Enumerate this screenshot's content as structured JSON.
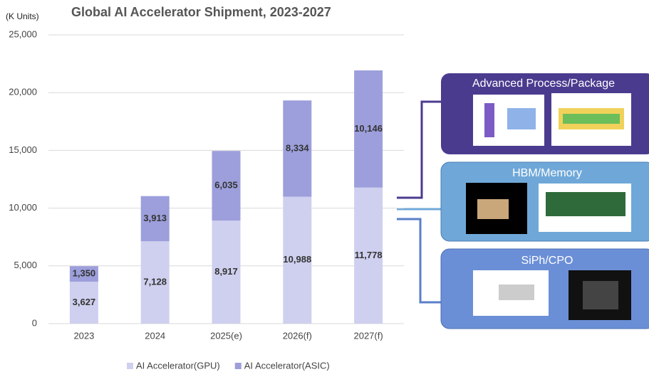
{
  "chart_data": {
    "type": "stacked_bar",
    "title": "Global AI Accelerator Shipment, 2023-2027",
    "y_label": "(K Units)",
    "categories": [
      "2023",
      "2024",
      "2025(e)",
      "2026(f)",
      "2027(f)"
    ],
    "series": [
      {
        "name": "AI Accelerator(GPU)",
        "color": "#cfd0ef",
        "values": [
          3627,
          7128,
          8917,
          10988,
          11778
        ],
        "value_labels": [
          "3,627",
          "7,128",
          "8,917",
          "10,988",
          "11,778"
        ]
      },
      {
        "name": "AI Accelerator(ASIC)",
        "color": "#9d9fdc",
        "values": [
          1350,
          3913,
          6035,
          8334,
          10146
        ],
        "value_labels": [
          "1,350",
          "3,913",
          "6,035",
          "8,334",
          "10,146"
        ]
      }
    ],
    "ylim": [
      0,
      25000
    ],
    "yticks": [
      0,
      {
        "value": 5000,
        "label": "5,000"
      },
      {
        "value": 10000,
        "label": "10,000"
      },
      {
        "value": 15000,
        "label": "15,000"
      },
      {
        "value": 20000,
        "label": "20,000"
      },
      {
        "value": 25000,
        "label": "25,000"
      }
    ],
    "grid": true,
    "legend": "bottom"
  },
  "diagram": {
    "boxes": [
      {
        "label": "Advanced Process/Package"
      },
      {
        "label": "HBM/Memory"
      },
      {
        "label": "SiPh/CPO"
      }
    ]
  }
}
